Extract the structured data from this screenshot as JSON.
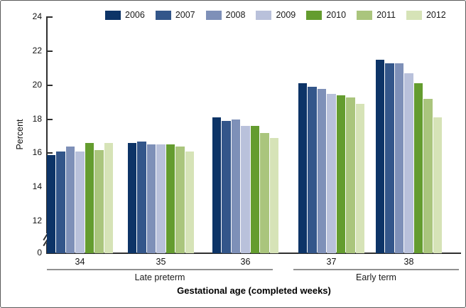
{
  "chart_data": {
    "type": "bar",
    "title": "",
    "xlabel": "Gestational age (completed weeks)",
    "ylabel": "Percent",
    "categories": [
      "34",
      "35",
      "36",
      "37",
      "38"
    ],
    "category_sections": [
      {
        "label": "Late preterm",
        "categories": [
          "34",
          "35",
          "36"
        ]
      },
      {
        "label": "Early term",
        "categories": [
          "37",
          "38"
        ]
      }
    ],
    "series": [
      {
        "name": "2006",
        "color": "#0d3467",
        "values": [
          15.9,
          16.6,
          18.1,
          20.1,
          21.5
        ]
      },
      {
        "name": "2007",
        "color": "#33568a",
        "values": [
          16.1,
          16.7,
          17.9,
          19.9,
          21.3
        ]
      },
      {
        "name": "2008",
        "color": "#7e90b8",
        "values": [
          16.4,
          16.5,
          18.0,
          19.8,
          21.3
        ]
      },
      {
        "name": "2009",
        "color": "#b9c1db",
        "values": [
          16.1,
          16.5,
          17.6,
          19.5,
          20.7
        ]
      },
      {
        "name": "2010",
        "color": "#649c2f",
        "values": [
          16.6,
          16.5,
          17.6,
          19.4,
          20.1
        ]
      },
      {
        "name": "2011",
        "color": "#aac57d",
        "values": [
          16.2,
          16.4,
          17.2,
          19.3,
          19.2
        ]
      },
      {
        "name": "2012",
        "color": "#d6e3b7",
        "values": [
          16.6,
          16.1,
          16.9,
          18.9,
          18.1
        ]
      }
    ],
    "ylim": [
      0,
      24
    ],
    "yticks": [
      24,
      22,
      20,
      18,
      16,
      14,
      12,
      0
    ],
    "axis_break": {
      "between": [
        0,
        12
      ]
    },
    "grid": false,
    "legend_position": "top"
  }
}
